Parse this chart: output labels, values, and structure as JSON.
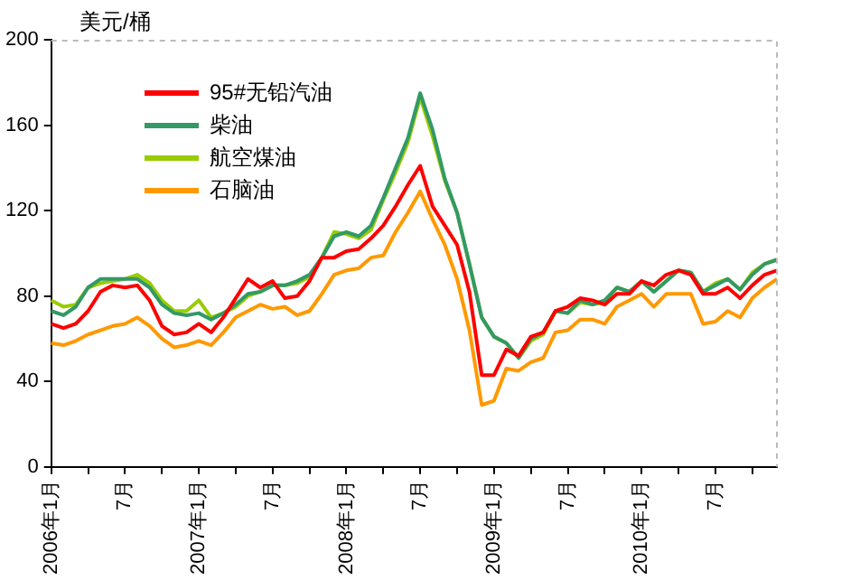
{
  "chart_data": {
    "type": "line",
    "ylabel": "美元/桶",
    "categories": [
      "2006年1月",
      null,
      null,
      null,
      null,
      null,
      "7月",
      null,
      null,
      null,
      null,
      null,
      "2007年1月",
      null,
      null,
      null,
      null,
      null,
      "7月",
      null,
      null,
      null,
      null,
      null,
      "2008年1月",
      null,
      null,
      null,
      null,
      null,
      "7月",
      null,
      null,
      null,
      null,
      null,
      "2009年1月",
      null,
      null,
      null,
      null,
      null,
      "7月",
      null,
      null,
      null,
      null,
      null,
      "2010年1月",
      null,
      null,
      null,
      null,
      null,
      "7月",
      null,
      null,
      null,
      null,
      null
    ],
    "series": [
      {
        "name": "95#无铅汽油",
        "color": "#ff0000",
        "values": [
          67,
          65,
          67,
          73,
          82,
          85,
          84,
          85,
          78,
          66,
          62,
          63,
          67,
          63,
          70,
          79,
          88,
          84,
          87,
          79,
          80,
          87,
          98,
          98,
          101,
          102,
          107,
          113,
          122,
          132,
          141,
          122,
          113,
          104,
          82,
          43,
          43,
          55,
          52,
          61,
          63,
          73,
          75,
          79,
          78,
          76,
          81,
          81,
          87,
          85,
          90,
          92,
          90,
          81,
          81,
          84,
          79,
          85,
          90,
          92
        ]
      },
      {
        "name": "柴油",
        "color": "#339966",
        "values": [
          73,
          71,
          75,
          84,
          88,
          88,
          88,
          88,
          84,
          76,
          72,
          71,
          72,
          69,
          72,
          76,
          81,
          82,
          85,
          85,
          87,
          90,
          98,
          108,
          110,
          108,
          113,
          126,
          140,
          154,
          175,
          158,
          135,
          119,
          95,
          70,
          61,
          58,
          51,
          60,
          63,
          73,
          72,
          78,
          76,
          78,
          84,
          82,
          87,
          82,
          87,
          92,
          91,
          82,
          85,
          88,
          83,
          90,
          95,
          97
        ]
      },
      {
        "name": "航空煤油",
        "color": "#99cc00",
        "values": [
          78,
          75,
          76,
          84,
          86,
          87,
          88,
          90,
          86,
          78,
          73,
          73,
          78,
          70,
          72,
          75,
          80,
          82,
          85,
          85,
          86,
          89,
          98,
          110,
          109,
          107,
          111,
          125,
          138,
          152,
          173,
          155,
          134,
          119,
          95,
          70,
          61,
          58,
          51,
          59,
          62,
          73,
          72,
          77,
          76,
          77,
          84,
          82,
          87,
          82,
          87,
          92,
          91,
          82,
          86,
          88,
          83,
          91,
          95,
          97
        ]
      },
      {
        "name": "石脑油",
        "color": "#ff9900",
        "values": [
          58,
          57,
          59,
          62,
          64,
          66,
          67,
          70,
          66,
          60,
          56,
          57,
          59,
          57,
          63,
          70,
          73,
          76,
          74,
          75,
          71,
          73,
          81,
          90,
          92,
          93,
          98,
          99,
          110,
          119,
          129,
          116,
          104,
          88,
          64,
          29,
          31,
          46,
          45,
          49,
          51,
          63,
          64,
          69,
          69,
          67,
          75,
          78,
          81,
          75,
          81,
          81,
          81,
          67,
          68,
          73,
          70,
          79,
          84,
          88
        ]
      }
    ],
    "ylim": [
      0,
      200
    ],
    "yticks": [
      0,
      40,
      80,
      120,
      160,
      200
    ],
    "grid": false,
    "legend": "top left",
    "marker": "none",
    "line_style": "solid"
  }
}
